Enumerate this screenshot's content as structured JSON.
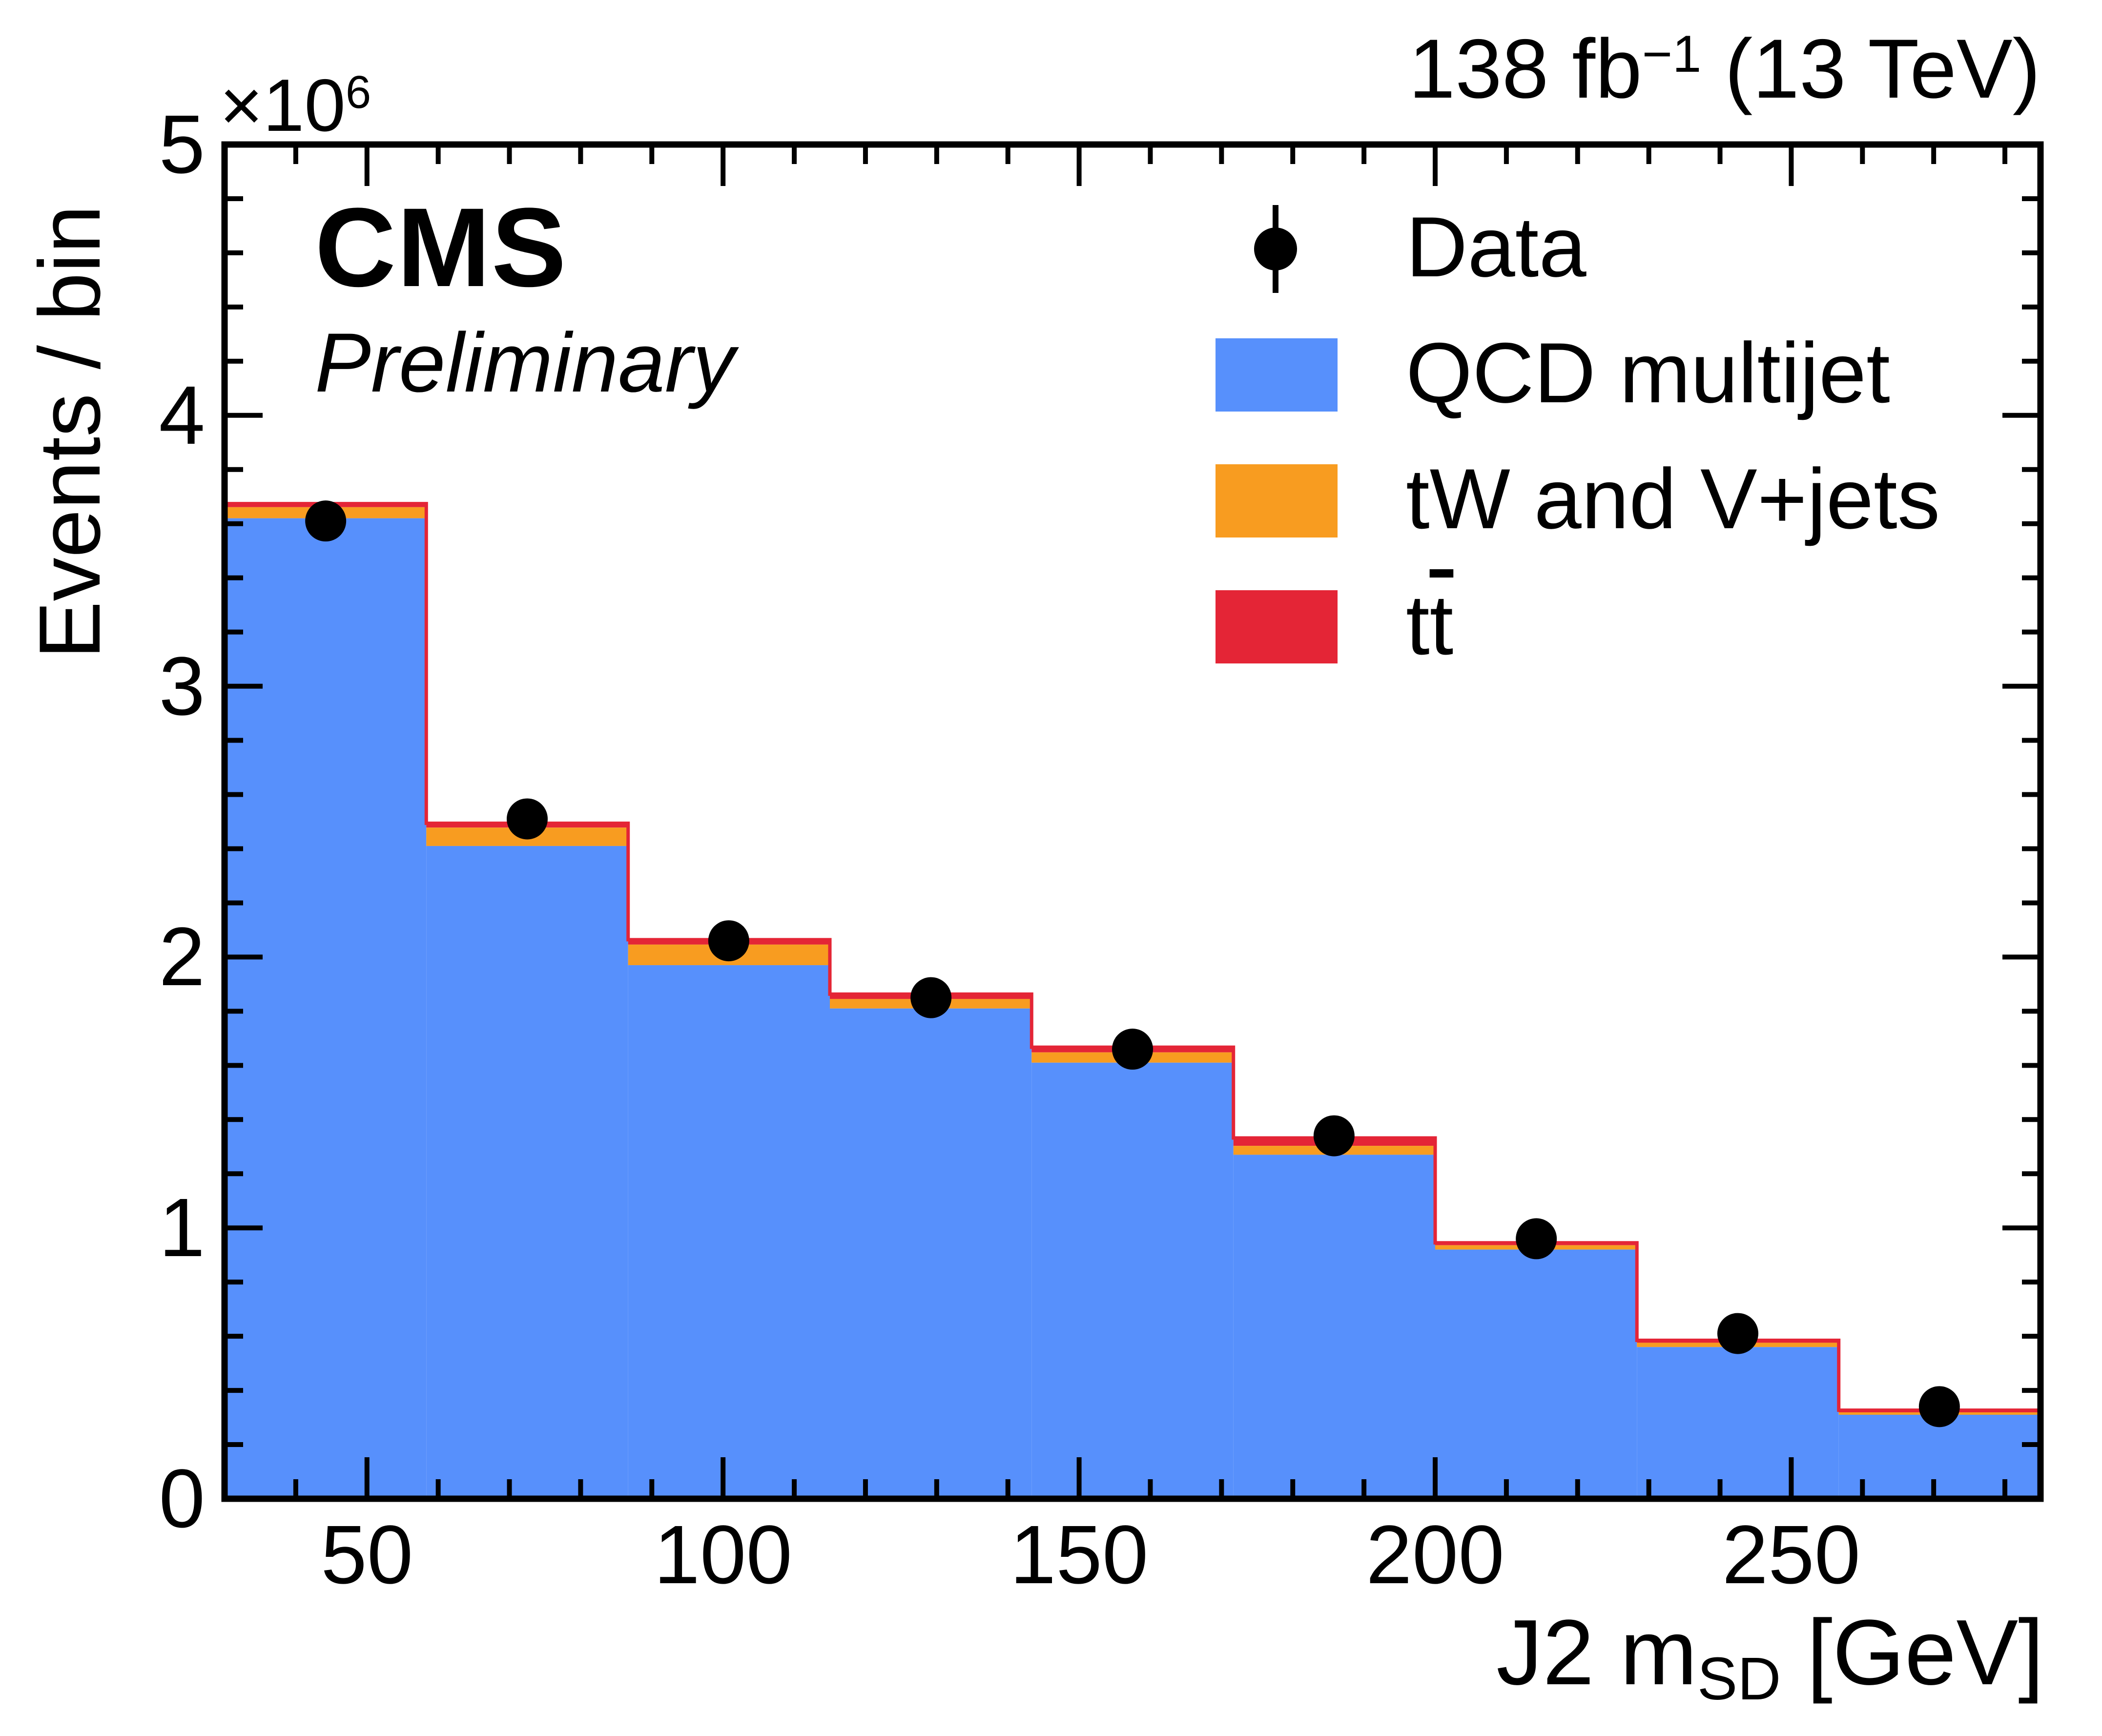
{
  "header": {
    "experiment": "CMS",
    "status": "Preliminary",
    "lumi_prefix": "138 fb",
    "lumi_sup": "−1",
    "lumi_suffix": " (13 TeV)"
  },
  "axes": {
    "y": {
      "title": "Events / bin",
      "exponent_base": "×10",
      "exponent_sup": "6",
      "tick_labels": [
        "0",
        "1",
        "2",
        "3",
        "4",
        "5"
      ],
      "tick_values": [
        0,
        1,
        2,
        3,
        4,
        5
      ],
      "minor_tick_step": 0.2,
      "range_e6": [
        0,
        5
      ]
    },
    "x": {
      "title_pre": "J2 m",
      "title_sub": "SD",
      "title_post": " [GeV]",
      "tick_labels": [
        "50",
        "100",
        "150",
        "200",
        "250"
      ],
      "tick_values": [
        50,
        100,
        150,
        200,
        250
      ],
      "minor_tick_step": 10,
      "range_gev": [
        30,
        285
      ]
    }
  },
  "legend": {
    "position": "top-right",
    "entries": [
      {
        "label": "Data",
        "marker": "black-circle-with-errorbar",
        "color": "#000000"
      },
      {
        "label": "QCD multijet",
        "color": "#5790fc"
      },
      {
        "label": "tW and V+jets",
        "color": "#f89c20"
      },
      {
        "label": "t",
        "label_bar": "t",
        "color": "#e42536"
      }
    ]
  },
  "chart_data": {
    "type": "bar",
    "subtype": "stacked-histogram-with-data-points",
    "title": "",
    "xlabel": "J2 mSD [GeV]",
    "ylabel": "Events / bin",
    "y_scale": 1000000,
    "xlim": [
      30,
      285
    ],
    "ylim_e6": [
      0,
      5
    ],
    "grid": false,
    "x_bin_edges_gev": [
      30,
      58.33,
      86.67,
      115,
      143.33,
      171.67,
      200,
      228.33,
      256.67,
      285
    ],
    "series": [
      {
        "name": "QCD multijet",
        "color": "#5790fc",
        "values_e6": [
          3.62,
          2.41,
          1.97,
          1.81,
          1.61,
          1.27,
          0.92,
          0.56,
          0.31
        ]
      },
      {
        "name": "tW and V+jets",
        "color": "#f89c20",
        "values_e6": [
          0.041,
          0.068,
          0.076,
          0.035,
          0.038,
          0.033,
          0.016,
          0.016,
          0.009
        ]
      },
      {
        "name": "ttbar",
        "color": "#e42536",
        "values_e6": [
          0.013,
          0.016,
          0.018,
          0.018,
          0.019,
          0.029,
          0.009,
          0.009,
          0.008
        ]
      }
    ],
    "stack_totals_e6": [
      3.674,
      2.494,
      2.064,
      1.863,
      1.667,
      1.332,
      0.945,
      0.585,
      0.327
    ],
    "data_points": {
      "marker": "filled-circle",
      "color": "#000000",
      "x_gev": [
        44.2,
        72.5,
        100.8,
        129.2,
        157.5,
        185.8,
        214.2,
        242.5,
        270.8
      ],
      "y_e6": [
        3.61,
        2.51,
        2.06,
        1.85,
        1.66,
        1.34,
        0.96,
        0.61,
        0.34
      ]
    }
  }
}
